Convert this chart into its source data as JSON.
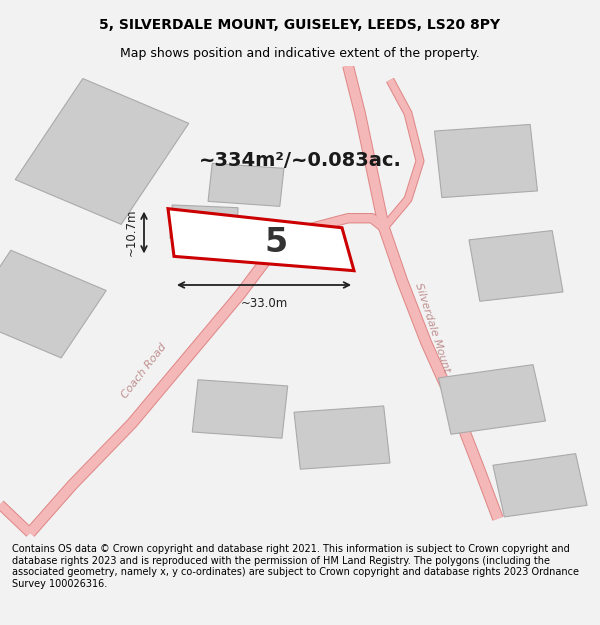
{
  "title": "5, SILVERDALE MOUNT, GUISELEY, LEEDS, LS20 8PY",
  "subtitle": "Map shows position and indicative extent of the property.",
  "area_label": "~334m²/~0.083ac.",
  "plot_number": "5",
  "dim_width": "~33.0m",
  "dim_height": "~10.7m",
  "footer": "Contains OS data © Crown copyright and database right 2021. This information is subject to Crown copyright and database rights 2023 and is reproduced with the permission of HM Land Registry. The polygons (including the associated geometry, namely x, y co-ordinates) are subject to Crown copyright and database rights 2023 Ordnance Survey 100026316.",
  "bg_color": "#f2f2f2",
  "map_bg": "#ffffff",
  "road_color": "#f5b8b8",
  "road_edge_color": "#e08888",
  "building_color": "#cccccc",
  "building_edge": "#aaaaaa",
  "plot_edge_color": "#cc0000",
  "plot_fill": "#ffffff",
  "road_label_color": "#c09090",
  "title_fontsize": 10,
  "subtitle_fontsize": 9,
  "footer_fontsize": 7,
  "area_fontsize": 14,
  "plot_num_fontsize": 24,
  "dim_fontsize": 8.5
}
